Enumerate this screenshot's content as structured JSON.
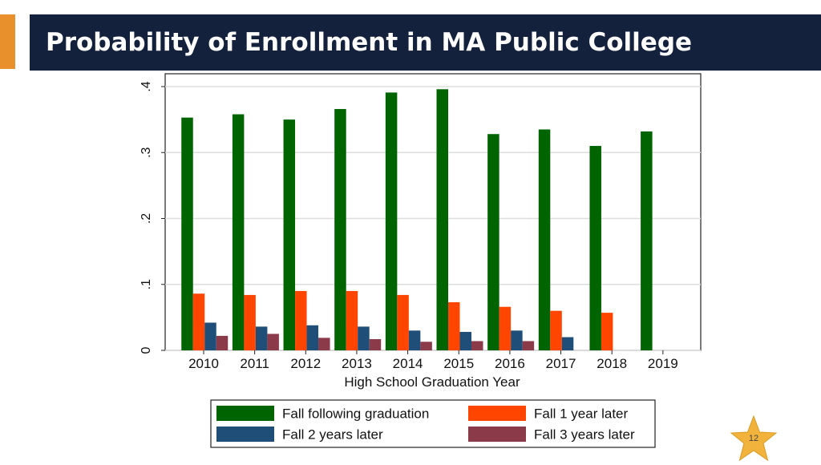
{
  "slide": {
    "title": "Probability of Enrollment in MA Public College",
    "page_number": "12",
    "accent_color": "#E8912C",
    "header_color": "#14213D"
  },
  "chart_data": {
    "type": "bar",
    "xlabel": "High School Graduation Year",
    "ylabel": "",
    "ylim": [
      0,
      0.4
    ],
    "yticks": [
      0,
      0.1,
      0.2,
      0.3,
      0.4
    ],
    "ytick_labels": [
      "0",
      ".1",
      ".2",
      ".3",
      ".4"
    ],
    "grid": true,
    "legend_position": "bottom",
    "categories": [
      "2010",
      "2011",
      "2012",
      "2013",
      "2014",
      "2015",
      "2016",
      "2017",
      "2018",
      "2019"
    ],
    "series": [
      {
        "name": "Fall following graduation",
        "color": "#006400",
        "values": [
          0.353,
          0.358,
          0.35,
          0.366,
          0.391,
          0.396,
          0.328,
          0.335,
          0.31,
          0.332
        ]
      },
      {
        "name": "Fall 1 year later",
        "color": "#FF4500",
        "values": [
          0.086,
          0.084,
          0.09,
          0.09,
          0.084,
          0.073,
          0.066,
          0.06,
          0.057,
          null
        ]
      },
      {
        "name": "Fall 2 years later",
        "color": "#1F4E79",
        "values": [
          0.042,
          0.036,
          0.038,
          0.036,
          0.03,
          0.028,
          0.03,
          0.02,
          null,
          null
        ]
      },
      {
        "name": "Fall 3 years later",
        "color": "#8B3A4A",
        "values": [
          0.022,
          0.025,
          0.019,
          0.017,
          0.013,
          0.014,
          0.014,
          null,
          null,
          null
        ]
      }
    ]
  }
}
